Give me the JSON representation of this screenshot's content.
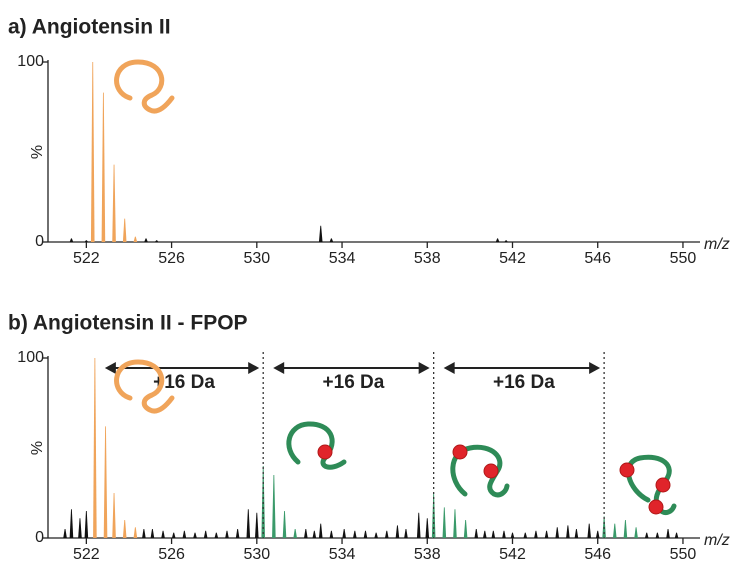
{
  "chart_data": [
    {
      "type": "stem",
      "title": "a) Angiotensin II",
      "x_label": "m/z",
      "y_label": "%",
      "xlim": [
        520.2,
        550.8
      ],
      "xticks": [
        522,
        526,
        530,
        534,
        538,
        542,
        546,
        550
      ],
      "ylim": [
        0,
        100
      ],
      "yticks": [
        0,
        100
      ],
      "series": [
        {
          "color": "#f0a45a",
          "x": [
            522.3,
            522.8,
            523.3,
            523.8,
            524.3
          ],
          "values": [
            100,
            83,
            43,
            13,
            3
          ]
        },
        {
          "color": "#111111",
          "x": [
            521.3,
            522.0,
            524.8,
            525.3,
            533.0,
            533.5,
            541.3,
            541.7
          ],
          "values": [
            2,
            1,
            2,
            1,
            9,
            2,
            2,
            1
          ]
        }
      ]
    },
    {
      "type": "stem",
      "title": "b) Angiotensin II - FPOP",
      "x_label": "m/z",
      "y_label": "%",
      "xlim": [
        520.2,
        550.8
      ],
      "xticks": [
        522,
        526,
        530,
        534,
        538,
        542,
        546,
        550
      ],
      "ylim": [
        0,
        100
      ],
      "yticks": [
        0,
        100
      ],
      "series": [
        {
          "color": "#f0a45a",
          "x": [
            522.4,
            522.9,
            523.3,
            523.8,
            524.3
          ],
          "values": [
            100,
            62,
            25,
            10,
            6
          ]
        },
        {
          "color": "#3a9a6a",
          "x": [
            530.3,
            530.8,
            531.3,
            531.8
          ],
          "values": [
            40,
            35,
            15,
            5
          ]
        },
        {
          "color": "#3a9a6a",
          "x": [
            538.3,
            538.8,
            539.3,
            539.8
          ],
          "values": [
            25,
            17,
            16,
            10
          ]
        },
        {
          "color": "#3a9a6a",
          "x": [
            546.3,
            546.8,
            547.3,
            547.8
          ],
          "values": [
            12,
            8,
            10,
            6
          ]
        },
        {
          "color": "#111111",
          "x": [
            521.0,
            521.3,
            521.7,
            522.0,
            524.7,
            525.1,
            525.6,
            526.1,
            526.6,
            527.1,
            527.6,
            528.1,
            528.6,
            529.1,
            529.6,
            530.0,
            532.3,
            532.7,
            533.0,
            533.5,
            534.1,
            534.6,
            535.1,
            535.6,
            536.1,
            536.6,
            537.0,
            537.6,
            538.0,
            540.3,
            540.7,
            541.1,
            541.6,
            542.0,
            542.6,
            543.1,
            543.6,
            544.1,
            544.6,
            545.0,
            545.6,
            546.0,
            548.3,
            548.8,
            549.3,
            549.7
          ],
          "values": [
            5,
            16,
            11,
            15,
            5,
            5,
            4,
            3,
            4,
            3,
            4,
            3,
            4,
            5,
            16,
            14,
            5,
            4,
            8,
            4,
            5,
            4,
            4,
            3,
            4,
            7,
            5,
            14,
            11,
            5,
            4,
            4,
            4,
            3,
            3,
            4,
            4,
            6,
            7,
            5,
            8,
            4,
            3,
            3,
            5,
            3
          ]
        }
      ],
      "annotations": [
        "+16 Da",
        "+16 Da",
        "+16 Da"
      ]
    }
  ]
}
